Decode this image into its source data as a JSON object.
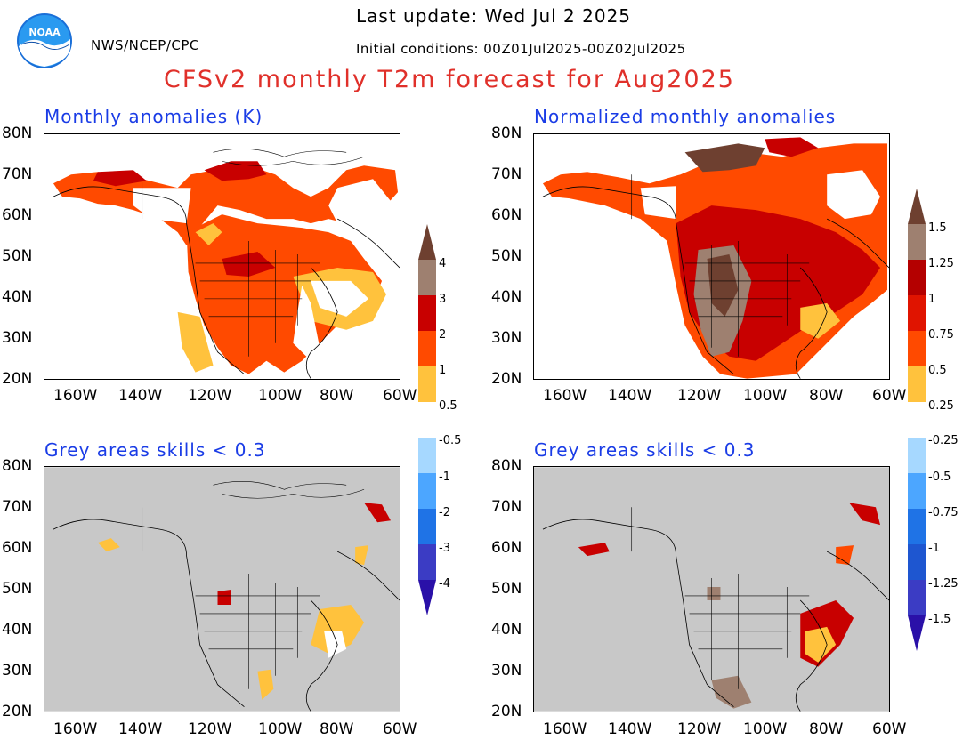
{
  "header": {
    "last_update": "Last update: Wed Jul 2 2025",
    "agency": "NWS/NCEP/CPC",
    "initial_conditions": "Initial conditions: 00Z01Jul2025-00Z02Jul2025",
    "title": "CFSv2 monthly T2m forecast for Aug2025"
  },
  "logo": {
    "text": "NOAA"
  },
  "panels": {
    "top_left": {
      "title": "Monthly anomalies (K)"
    },
    "top_right": {
      "title": "Normalized monthly anomalies"
    },
    "bottom_left": {
      "title": "Grey areas skills < 0.3"
    },
    "bottom_right": {
      "title": "Grey areas skills < 0.3"
    }
  },
  "axes": {
    "lat_labels": [
      "80N",
      "70N",
      "60N",
      "50N",
      "40N",
      "30N",
      "20N"
    ],
    "lon_labels": [
      "160W",
      "140W",
      "120W",
      "100W",
      "80W",
      "60W"
    ]
  },
  "colorbar_left": {
    "labels_upper": [
      "4",
      "3",
      "2",
      "1",
      "0.5"
    ],
    "labels_lower": [
      "-0.5",
      "-1",
      "-2",
      "-3",
      "-4"
    ],
    "warm_colors": [
      "#ffc23d",
      "#ff4a00",
      "#c80000",
      "#9e8070",
      "#6e4030"
    ],
    "cool_colors": [
      "#a6d8ff",
      "#4ca6ff",
      "#1f73e6",
      "#1e3fb4",
      "#4b2fbe"
    ]
  },
  "colorbar_right": {
    "labels_upper": [
      "1.5",
      "1.25",
      "1",
      "0.75",
      "0.5",
      "0.25"
    ],
    "labels_lower": [
      "-0.25",
      "-0.5",
      "-0.75",
      "-1",
      "-1.25",
      "-1.5"
    ],
    "warm_colors": [
      "#ffc23d",
      "#ff4a00",
      "#e01400",
      "#b40000",
      "#9e8070",
      "#6e4030"
    ],
    "cool_colors": [
      "#a6d8ff",
      "#4ca6ff",
      "#1f73e6",
      "#1e56d0",
      "#3b3cc4",
      "#4b2fbe"
    ]
  },
  "colors": {
    "land_bg": "#ffffff",
    "grey_skill": "#c8c8c8",
    "ocean": "#ffffff"
  }
}
